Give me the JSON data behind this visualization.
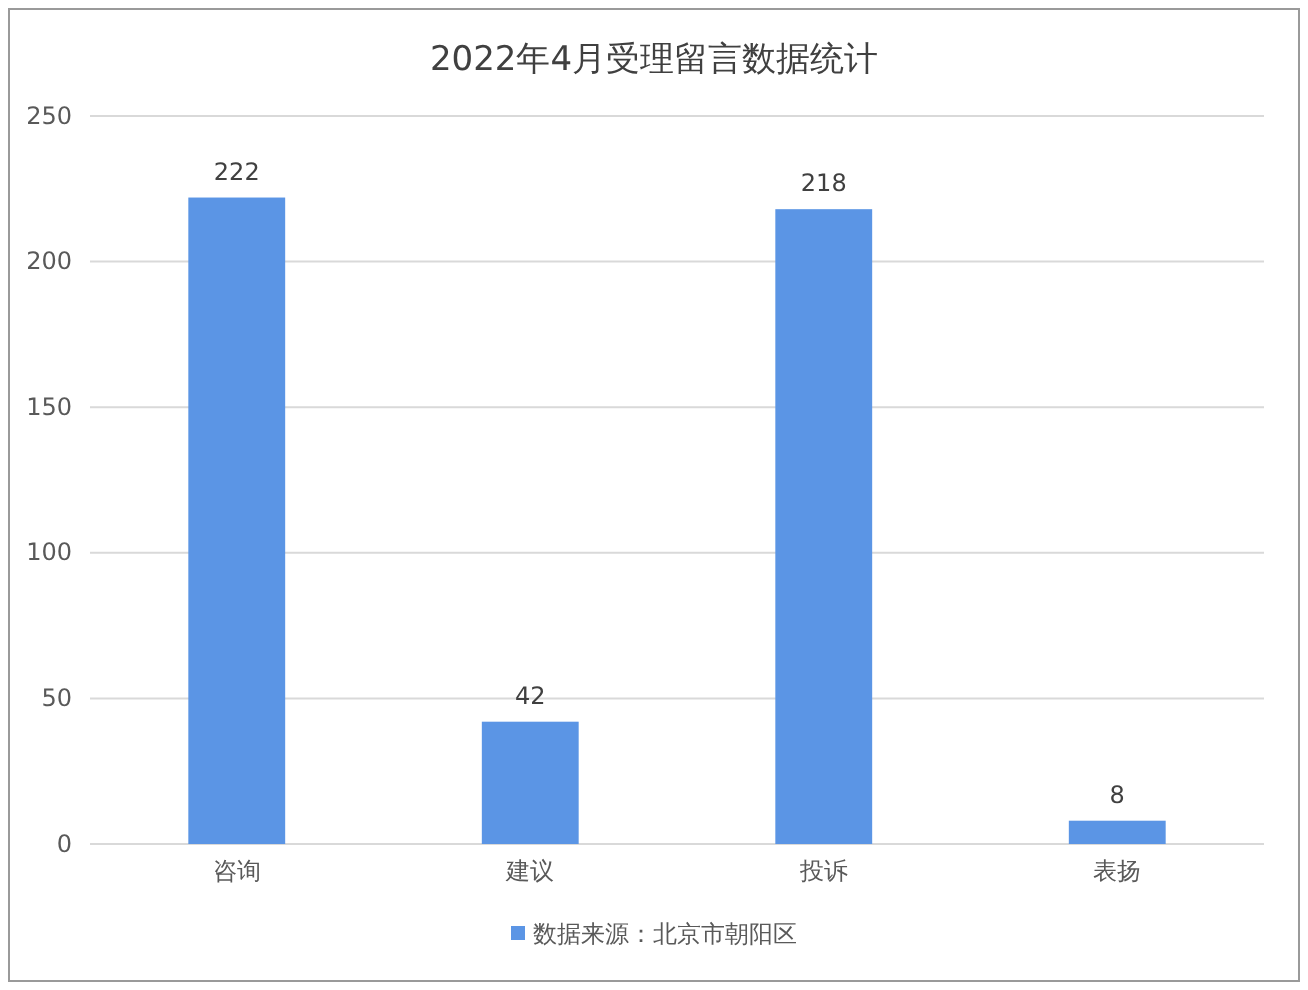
{
  "chart_data": {
    "type": "bar",
    "title": "2022年4月受理留言数据统计",
    "categories": [
      "咨询",
      "建议",
      "投诉",
      "表扬"
    ],
    "series": [
      {
        "name": "数据来源：北京市朝阳区",
        "color": "#5b95e5",
        "values": [
          222,
          42,
          218,
          8
        ]
      }
    ],
    "ylim": [
      0,
      250
    ],
    "yticks": [
      0,
      50,
      100,
      150,
      200,
      250
    ],
    "grid": "y",
    "legend": "bottom",
    "data_labels": true
  }
}
